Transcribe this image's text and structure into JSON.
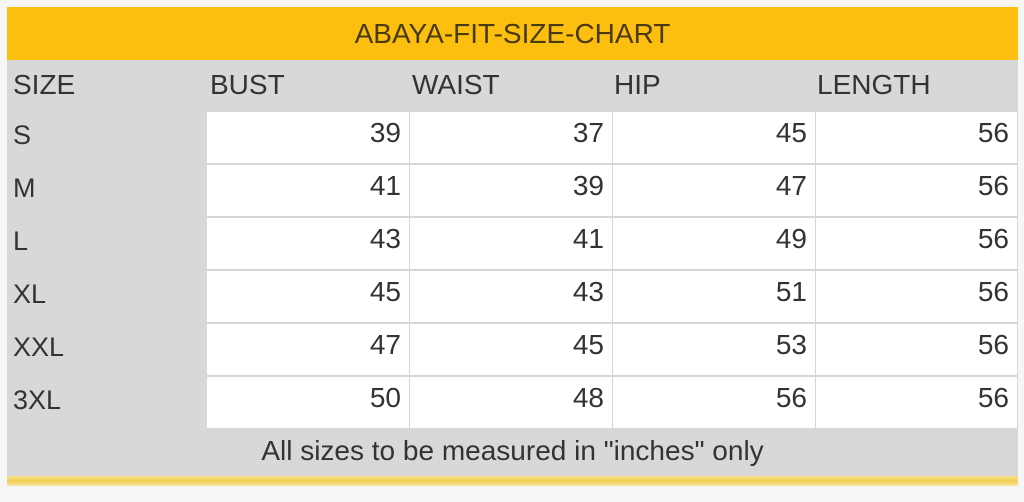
{
  "title": "ABAYA-FIT-SIZE-CHART",
  "columns": [
    "SIZE",
    "BUST",
    "WAIST",
    "HIP",
    "LENGTH"
  ],
  "rows": [
    {
      "size": "S",
      "values": [
        "39",
        "37",
        "45",
        "56"
      ]
    },
    {
      "size": "M",
      "values": [
        "41",
        "39",
        "47",
        "56"
      ]
    },
    {
      "size": "L",
      "values": [
        "43",
        "41",
        "49",
        "56"
      ]
    },
    {
      "size": "XL",
      "values": [
        "45",
        "43",
        "51",
        "56"
      ]
    },
    {
      "size": "XXL",
      "values": [
        "47",
        "45",
        "53",
        "56"
      ]
    },
    {
      "size": "3XL",
      "values": [
        "50",
        "48",
        "56",
        "56"
      ]
    }
  ],
  "note": "All sizes to be measured in \"inches\" only",
  "colors": {
    "title_band": "#fdbf0f",
    "table_bg": "#d8d8d8",
    "cell_bg": "#ffffff"
  }
}
